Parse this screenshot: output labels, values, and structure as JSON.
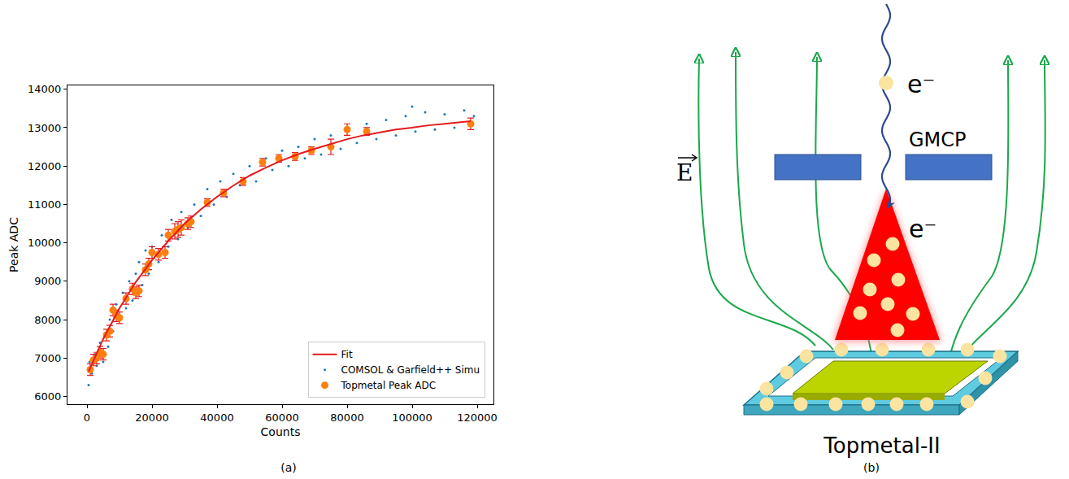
{
  "chart_data": {
    "type": "scatter",
    "panel": "(a)",
    "x_label": "Counts",
    "y_label": "Peak ADC",
    "xlim": [
      -6000,
      125000
    ],
    "ylim": [
      5800,
      14100
    ],
    "xticks": [
      0,
      20000,
      40000,
      60000,
      80000,
      100000,
      120000
    ],
    "yticks": [
      6000,
      7000,
      8000,
      9000,
      10000,
      11000,
      12000,
      13000,
      14000
    ],
    "grid": false,
    "legend": "lower right",
    "series": [
      {
        "name": "Fit",
        "type": "line",
        "color": "#e41a1c",
        "x": [
          500,
          5000,
          10000,
          15000,
          20000,
          25000,
          30000,
          35000,
          40000,
          45000,
          50000,
          55000,
          60000,
          65000,
          70000,
          75000,
          80000,
          85000,
          90000,
          95000,
          100000,
          105000,
          110000,
          118000
        ],
        "values": [
          6650,
          7500,
          8300,
          8980,
          9550,
          10050,
          10500,
          10870,
          11200,
          11490,
          11750,
          11960,
          12150,
          12310,
          12450,
          12580,
          12700,
          12800,
          12880,
          12950,
          13000,
          13060,
          13100,
          13170
        ]
      },
      {
        "name": "COMSOL & Garfield++ Simu",
        "type": "scatter",
        "marker": "dot",
        "color": "#1f77b4",
        "x": [
          500,
          800,
          1500,
          2500,
          3000,
          4000,
          5000,
          5500,
          6500,
          7000,
          8000,
          9000,
          10000,
          11000,
          12000,
          13000,
          14000,
          15000,
          16000,
          17000,
          18000,
          19000,
          20000,
          22000,
          23000,
          25000,
          26000,
          28000,
          29000,
          31000,
          33000,
          35000,
          37000,
          39000,
          41000,
          43000,
          45000,
          47000,
          50000,
          52000,
          55000,
          57000,
          60000,
          62000,
          65000,
          67000,
          70000,
          72000,
          75000,
          78000,
          80000,
          83000,
          86000,
          89000,
          92000,
          95000,
          98000,
          100000,
          101000,
          104000,
          107000,
          110000,
          113000,
          116000,
          118000,
          119000
        ],
        "values": [
          6300,
          6900,
          6600,
          7100,
          6800,
          7400,
          6900,
          7600,
          7300,
          8000,
          7700,
          8400,
          8000,
          8700,
          8300,
          9000,
          8500,
          9200,
          9500,
          8900,
          9800,
          9200,
          9900,
          9500,
          10200,
          9900,
          10600,
          10100,
          10800,
          10400,
          11000,
          10700,
          11400,
          11000,
          11600,
          11200,
          11800,
          11500,
          12000,
          11600,
          12200,
          11900,
          12400,
          12000,
          12500,
          12200,
          12700,
          12300,
          12800,
          12450,
          13000,
          12600,
          13100,
          12700,
          13200,
          12800,
          13300,
          13550,
          12900,
          13400,
          12950,
          13350,
          13000,
          13450,
          13050,
          13300
        ]
      },
      {
        "name": "Topmetal Peak ADC",
        "type": "scatter",
        "marker": "circle",
        "color": "#ff7f0e",
        "x": [
          1000,
          2000,
          3000,
          4000,
          5000,
          6000,
          7000,
          8000,
          9000,
          10000,
          12000,
          14000,
          15000,
          16000,
          18000,
          19000,
          20000,
          22000,
          24000,
          25000,
          27000,
          28000,
          29000,
          31000,
          32000,
          37000,
          42000,
          48000,
          54000,
          59000,
          64000,
          69000,
          75000,
          80000,
          86000,
          118000
        ],
        "values": [
          6700,
          6950,
          7000,
          7150,
          7100,
          7600,
          7700,
          8250,
          8100,
          8050,
          8550,
          8800,
          8700,
          8750,
          9300,
          9450,
          9750,
          9700,
          9750,
          10200,
          10300,
          10350,
          10400,
          10500,
          10550,
          11050,
          11300,
          11600,
          12100,
          12200,
          12250,
          12400,
          12500,
          12950,
          12900,
          13100
        ],
        "error": [
          150,
          150,
          150,
          150,
          150,
          150,
          150,
          150,
          150,
          150,
          150,
          150,
          150,
          150,
          150,
          150,
          150,
          150,
          150,
          150,
          200,
          200,
          200,
          150,
          150,
          100,
          100,
          100,
          100,
          100,
          100,
          100,
          200,
          150,
          100,
          150
        ]
      }
    ]
  },
  "diagram": {
    "panel": "(b)",
    "field_label": "E",
    "electron_label": "e⁻",
    "plate_label": "GMCP",
    "avalanche_label": "e⁻",
    "chip_label": "Topmetal-II"
  }
}
